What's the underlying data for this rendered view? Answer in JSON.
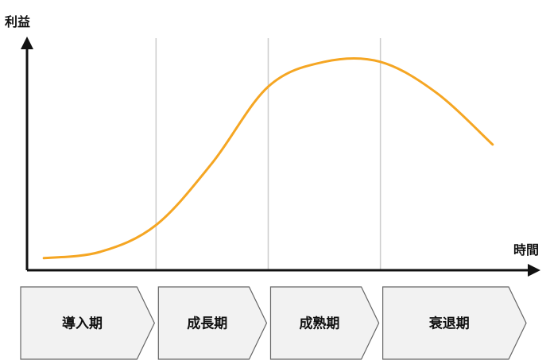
{
  "chart_data": {
    "type": "line",
    "title": "",
    "ylabel": "利益",
    "xlabel": "時間",
    "grid": false,
    "x": [
      0.0,
      0.5,
      1.0,
      1.5,
      2.0,
      2.5,
      3.0,
      3.5,
      4.0
    ],
    "series": [
      {
        "values": [
          2,
          5,
          18,
          48,
          85,
          97,
          97,
          82,
          57
        ]
      }
    ],
    "stages": [
      "導入期",
      "成長期",
      "成熟期",
      "衰退期"
    ],
    "stage_boundaries": [
      1,
      2,
      3
    ],
    "xlim": [
      -0.15,
      4.2
    ],
    "ylim": [
      0,
      100
    ],
    "line_color": "#f5a623",
    "divider_color": "#cccccc",
    "stage_fill": "#f2f2f2",
    "stage_stroke": "#666666"
  }
}
